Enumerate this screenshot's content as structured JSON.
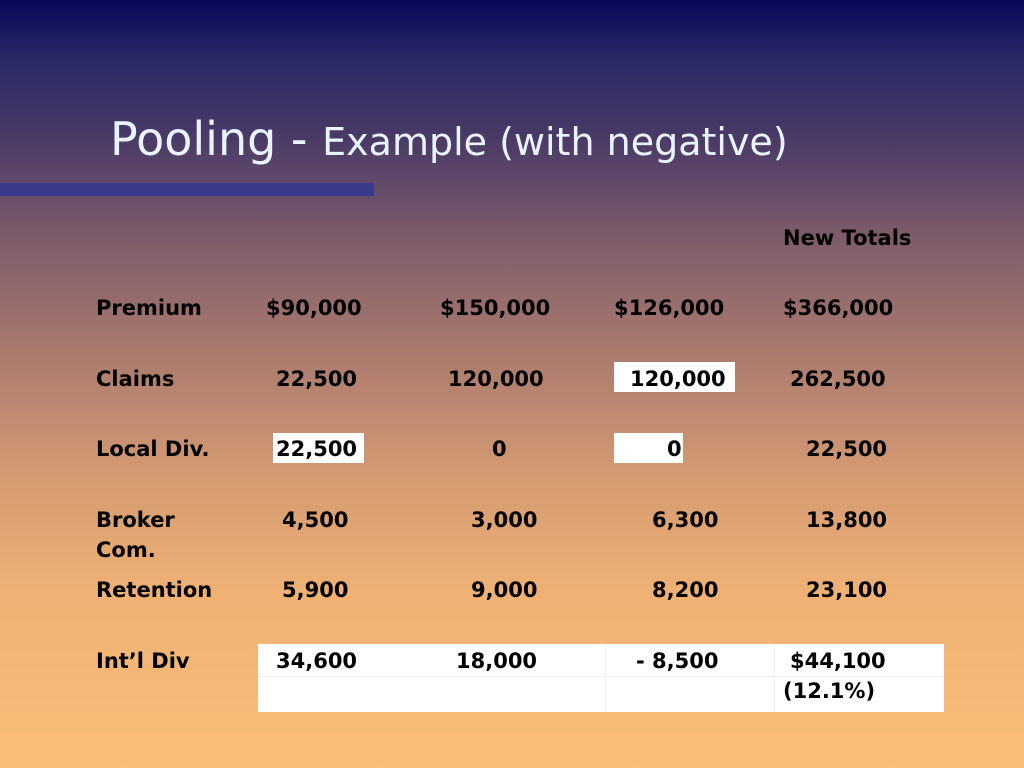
{
  "slide": {
    "title_main": "Pooling - ",
    "title_sub": "Example (with negative)",
    "new_totals_header": "New Totals"
  },
  "rows": [
    {
      "label": "Premium",
      "values": [
        "$90,000",
        "$150,000",
        "$126,000",
        "$366,000"
      ]
    },
    {
      "label": "Claims",
      "values": [
        "22,500",
        "120,000",
        "120,000",
        "262,500"
      ]
    },
    {
      "label": "Local Div.",
      "values": [
        "22,500",
        "0",
        "0",
        "22,500"
      ]
    },
    {
      "label": "Broker",
      "label2": "Com.",
      "values": [
        "4,500",
        "3,000",
        "6,300",
        "13,800"
      ]
    },
    {
      "label": "Retention",
      "values": [
        "5,900",
        "9,000",
        "8,200",
        "23,100"
      ]
    },
    {
      "label": "Int’l Div",
      "values": [
        "34,600",
        "18,000",
        "- 8,500",
        "$44,100"
      ],
      "note": "(12.1%)"
    }
  ]
}
